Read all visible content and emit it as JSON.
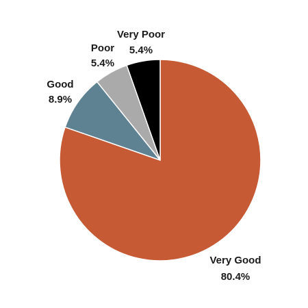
{
  "chart_data": {
    "type": "pie",
    "slices": [
      {
        "label": "Very Good",
        "value": 80.4,
        "value_label": "80.4%",
        "color": "#C65A35"
      },
      {
        "label": "Good",
        "value": 8.9,
        "value_label": "8.9%",
        "color": "#5F8292"
      },
      {
        "label": "Poor",
        "value": 5.4,
        "value_label": "5.4%",
        "color": "#AAAAAA"
      },
      {
        "label": "Very Poor",
        "value": 5.4,
        "value_label": "5.4%",
        "color": "#000000"
      }
    ],
    "start": "12 o'clock",
    "direction": "clockwise",
    "legend": "none"
  }
}
